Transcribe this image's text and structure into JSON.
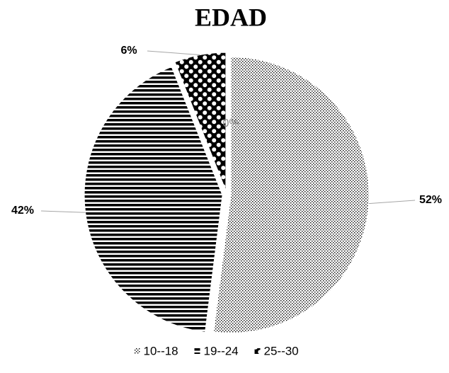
{
  "chart_data": {
    "type": "pie",
    "title": "EDAD",
    "categories": [
      "10--18",
      "19--24",
      "25--30",
      null
    ],
    "values": [
      52,
      42,
      6,
      0
    ],
    "value_labels": [
      "52%",
      "42%",
      "6%",
      "0%"
    ],
    "legend": "bottom"
  }
}
